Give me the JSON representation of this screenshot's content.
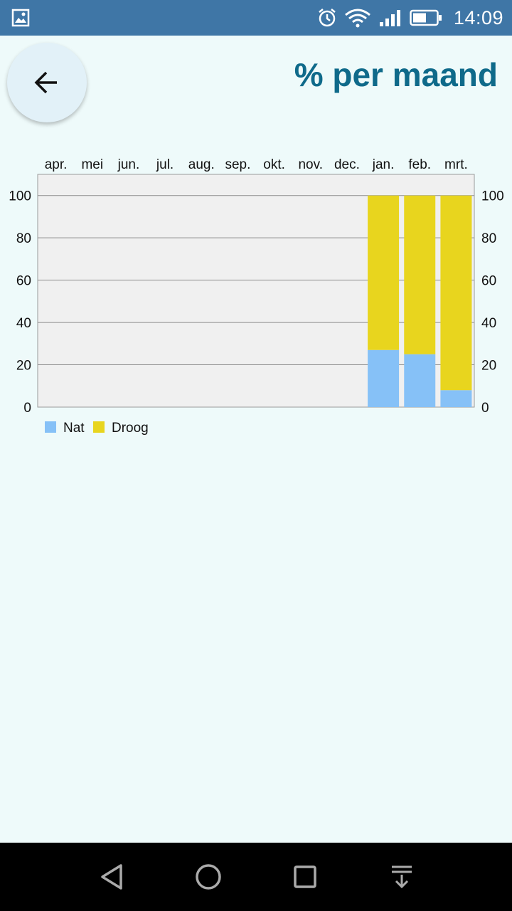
{
  "status_bar": {
    "time": "14:09",
    "icons": [
      "image-icon",
      "alarm-icon",
      "wifi-icon",
      "signal-icon",
      "battery-icon"
    ]
  },
  "header": {
    "title": "% per maand",
    "back_icon": "arrow-left-icon"
  },
  "colors": {
    "nat": "#86c1f7",
    "droog": "#e8d51e",
    "title": "#0f6a8a",
    "plot_bg": "#f0f0f0"
  },
  "chart_data": {
    "type": "bar",
    "stacked": true,
    "categories": [
      "apr.",
      "mei",
      "jun.",
      "jul.",
      "aug.",
      "sep.",
      "okt.",
      "nov.",
      "dec.",
      "jan.",
      "feb.",
      "mrt."
    ],
    "series": [
      {
        "name": "Nat",
        "values": [
          0,
          0,
          0,
          0,
          0,
          0,
          0,
          0,
          0,
          27,
          25,
          8
        ]
      },
      {
        "name": "Droog",
        "values": [
          0,
          0,
          0,
          0,
          0,
          0,
          0,
          0,
          0,
          73,
          75,
          92
        ]
      }
    ],
    "yticks": [
      "0",
      "20",
      "40",
      "60",
      "80",
      "100"
    ],
    "ylim": [
      0,
      110
    ],
    "grid": true,
    "legend_position": "bottom-left",
    "xaxis_position": "top",
    "yaxis": "both-sides"
  },
  "nav_bar": {
    "icons": [
      "back-triangle-icon",
      "home-circle-icon",
      "recents-square-icon",
      "notification-pull-icon"
    ]
  }
}
